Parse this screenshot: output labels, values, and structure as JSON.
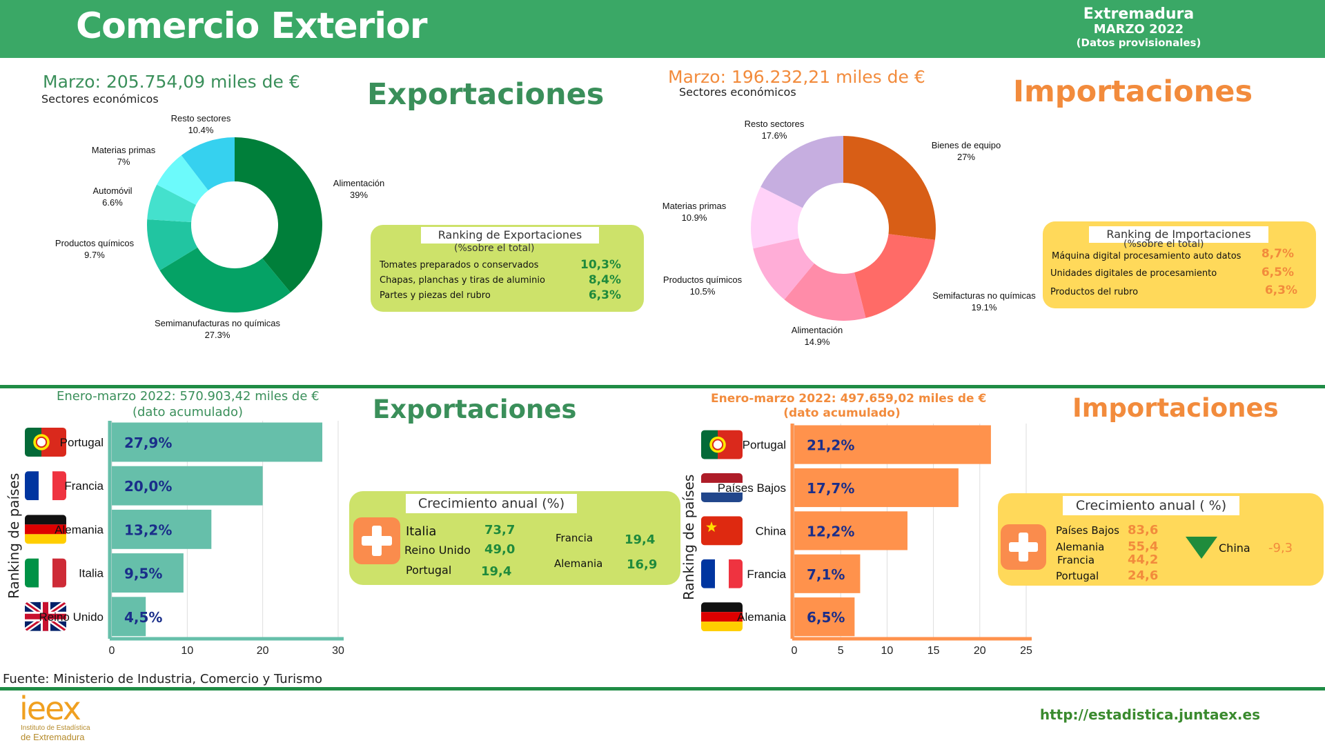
{
  "header": {
    "title": "Comercio Exterior",
    "region": "Extremadura",
    "period": "MARZO 2022",
    "note": "(Datos provisionales)",
    "bg_color": "#3aa866"
  },
  "colors": {
    "export_accent": "#3a8f5a",
    "import_accent": "#f28b3c",
    "export_box": "#cde26a",
    "import_box": "#ffd95a",
    "export_bar": "#66bfaa",
    "import_bar": "#ff924c",
    "bar_value_text": "#1a2e8a",
    "export_value_text": "#1f8a3c",
    "import_value_text": "#f28b3c"
  },
  "exports_month": {
    "section_title": "Exportaciones",
    "total": "Marzo: 205.754,09 miles de €",
    "subtitle": "Sectores económicos",
    "ranking": {
      "title": "Ranking de  Exportaciones",
      "subtitle": "(%sobre el total)",
      "items": [
        {
          "name": "Tomates preparados o conservados",
          "value": "10,3%"
        },
        {
          "name": "Chapas, planchas y tiras de aluminio",
          "value": "8,4%"
        },
        {
          "name": "Partes y piezas del rubro",
          "value": "6,3%"
        }
      ]
    }
  },
  "imports_month": {
    "section_title": "Importaciones",
    "total": "Marzo: 196.232,21 miles de €",
    "subtitle": "Sectores económicos",
    "ranking": {
      "title": "Ranking de  Importaciones",
      "subtitle": "(%sobre el total)",
      "items": [
        {
          "name": "Máquina digital procesamiento auto datos",
          "value": "8,7%"
        },
        {
          "name": "Unidades digitales de procesamiento",
          "value": "6,5%"
        },
        {
          "name": "Productos del rubro",
          "value": "6,3%"
        }
      ]
    }
  },
  "exports_acc": {
    "section_title": "Exportaciones",
    "total": "Enero-marzo 2022: 570.903,42 miles de €",
    "subtitle": "(dato acumulado)",
    "y_label": "Ranking de países",
    "growth": {
      "title": "Crecimiento anual (%)",
      "items": [
        {
          "name": "Italia",
          "value": "73,7"
        },
        {
          "name": "Reino Unido",
          "value": "49,0"
        },
        {
          "name": "Portugal",
          "value": "19,4"
        },
        {
          "name": "Francia",
          "value": "19,4"
        },
        {
          "name": "Alemania",
          "value": "16,9"
        }
      ]
    }
  },
  "imports_acc": {
    "section_title": "Importaciones",
    "total": "Enero-marzo 2022: 497.659,02 miles de €",
    "subtitle": "(dato acumulado)",
    "y_label": "Ranking de países",
    "growth": {
      "title": "Crecimiento anual ( %)",
      "items": [
        {
          "name": "Países Bajos",
          "value": "83,6"
        },
        {
          "name": "Alemania",
          "value": "55,4"
        },
        {
          "name": "Francia",
          "value": "44,2"
        },
        {
          "name": "Portugal",
          "value": "24,6"
        }
      ],
      "negative": {
        "name": "China",
        "value": "-9,3"
      }
    }
  },
  "chart_data": [
    {
      "type": "pie",
      "labels": [
        "Alimentación",
        "Semimanufacturas no químicas",
        "Productos químicos",
        "Automóvil",
        "Materias primas",
        "Resto sectores"
      ],
      "values": [
        39,
        27.3,
        9.7,
        6.6,
        7,
        10.4
      ],
      "value_labels": [
        "39%",
        "27.3%",
        "9.7%",
        "6.6%",
        "7%",
        "10.4%"
      ],
      "colors": [
        "#007f3a",
        "#05a265",
        "#21c5a1",
        "#44e1cd",
        "#6cfafb",
        "#36d1ef"
      ],
      "donut": true
    },
    {
      "type": "pie",
      "labels": [
        "Bienes de equipo",
        "Semifacturas no químicas",
        "Alimentación",
        "Productos químicos",
        "Materias primas",
        "Resto sectores"
      ],
      "values": [
        27,
        19.1,
        14.9,
        10.5,
        10.9,
        17.6
      ],
      "value_labels": [
        "27%",
        "19.1%",
        "14.9%",
        "10.5%",
        "10.9%",
        "17.6%"
      ],
      "colors": [
        "#d85e16",
        "#ff6b67",
        "#ff8ca9",
        "#ffadd7",
        "#ffd2f8",
        "#c6aee0"
      ],
      "donut": true
    },
    {
      "type": "bar",
      "orientation": "horizontal",
      "categories": [
        "Portugal",
        "Francia",
        "Alemania",
        "Italia",
        "Reino Unido"
      ],
      "values": [
        27.9,
        20.0,
        13.2,
        9.5,
        4.5
      ],
      "value_labels": [
        "27,9%",
        "20,0%",
        "13,2%",
        "9,5%",
        "4,5%"
      ],
      "flags": [
        "portugal-flag-icon",
        "france-flag-icon",
        "germany-flag-icon",
        "italy-flag-icon",
        "uk-flag-icon"
      ],
      "ylabel": "Ranking de países",
      "xlim": [
        0,
        30
      ],
      "xticks": [
        0,
        10,
        20,
        30
      ],
      "grid": true
    },
    {
      "type": "bar",
      "orientation": "horizontal",
      "categories": [
        "Portugal",
        "Países Bajos",
        "China",
        "Francia",
        "Alemania"
      ],
      "values": [
        21.2,
        17.7,
        12.2,
        7.1,
        6.5
      ],
      "value_labels": [
        "21,2%",
        "17,7%",
        "12,2%",
        "7,1%",
        "6,5%"
      ],
      "flags": [
        "portugal-flag-icon",
        "netherlands-flag-icon",
        "china-flag-icon",
        "france-flag-icon",
        "germany-flag-icon"
      ],
      "ylabel": "Ranking de países",
      "xlim": [
        0,
        25
      ],
      "xticks": [
        0,
        5,
        10,
        15,
        20,
        25
      ],
      "grid": true
    }
  ],
  "footer": {
    "source": "Fuente: Ministerio de Industria, Comercio y Turismo",
    "url": "http://estadistica.juntaex.es",
    "logo_text": "ieex",
    "logo_sub1": "Instituto de Estadística",
    "logo_sub2": "de Extremadura"
  }
}
